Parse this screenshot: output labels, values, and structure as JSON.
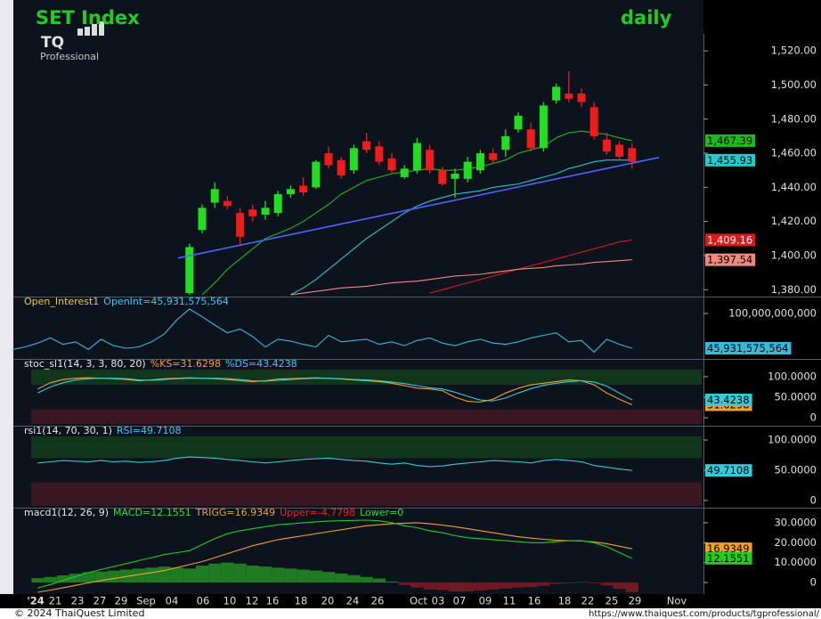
{
  "chart_data": [
    {
      "type": "candlestick",
      "title": "SET Index",
      "subtitle": "daily",
      "logo_text": "TQ",
      "logo_subtext": "Professional",
      "ylim": [
        1377,
        1530
      ],
      "yticks": [
        {
          "value": 1380,
          "label": "1,380.00"
        },
        {
          "value": 1400,
          "label": "1,400.00"
        },
        {
          "value": 1420,
          "label": "1,420.00"
        },
        {
          "value": 1440,
          "label": "1,440.00"
        },
        {
          "value": 1460,
          "label": "1,460.00"
        },
        {
          "value": 1480,
          "label": "1,480.00"
        },
        {
          "value": 1500,
          "label": "1,500.00"
        },
        {
          "value": 1520,
          "label": "1,520.00"
        }
      ],
      "up_color": "#22dd22",
      "down_color": "#ee1c1c",
      "open": [
        null,
        null,
        null,
        null,
        null,
        null,
        null,
        null,
        null,
        null,
        null,
        null,
        null,
        null,
        1378,
        1415,
        1431,
        1432,
        1425,
        1427,
        1424,
        1425,
        1436,
        1441,
        1440,
        1460,
        1456,
        1450,
        1467,
        1464,
        1457,
        1446,
        1450,
        1462,
        1450,
        1445,
        1445,
        1450,
        1460,
        1462,
        1474,
        1474,
        1463,
        1491,
        1495,
        1495,
        1487,
        1468,
        1465,
        1463
      ],
      "high": [
        null,
        null,
        null,
        null,
        null,
        null,
        null,
        null,
        null,
        null,
        null,
        null,
        null,
        null,
        1407,
        1430,
        1443,
        1435,
        1428,
        1430,
        1432,
        1438,
        1441,
        1446,
        1456,
        1464,
        1458,
        1465,
        1472,
        1467,
        1460,
        1453,
        1469,
        1465,
        1452,
        1451,
        1458,
        1462,
        1463,
        1474,
        1484,
        1478,
        1490,
        1501,
        1508,
        1498,
        1490,
        1472,
        1467,
        1466
      ],
      "low": [
        null,
        null,
        null,
        null,
        null,
        null,
        null,
        null,
        null,
        null,
        null,
        null,
        null,
        null,
        1377,
        1413,
        1428,
        1427,
        1406,
        1420,
        1421,
        1423,
        1434,
        1435,
        1439,
        1451,
        1445,
        1448,
        1460,
        1453,
        1448,
        1445,
        1448,
        1448,
        1441,
        1434,
        1443,
        1448,
        1454,
        1458,
        1472,
        1461,
        1461,
        1489,
        1490,
        1487,
        1468,
        1459,
        1456,
        1451
      ],
      "close": [
        null,
        null,
        null,
        null,
        null,
        null,
        null,
        null,
        null,
        null,
        null,
        null,
        null,
        null,
        1405,
        1428,
        1439,
        1429,
        1411,
        1423,
        1428,
        1436,
        1439,
        1437,
        1455,
        1453,
        1447,
        1463,
        1462,
        1455,
        1450,
        1451,
        1466,
        1450,
        1442,
        1448,
        1455,
        1460,
        1456,
        1470,
        1482,
        1463,
        1488,
        1499,
        1492,
        1490,
        1470,
        1461,
        1458,
        1455
      ],
      "series": [
        {
          "color": "#22b822",
          "last_label": "1,467.39",
          "values": [
            null,
            null,
            null,
            null,
            null,
            null,
            null,
            null,
            null,
            null,
            null,
            null,
            null,
            null,
            null,
            1377,
            1384,
            1392,
            1398,
            1404,
            1410,
            1413,
            1416,
            1420,
            1425,
            1430,
            1436,
            1440,
            1444,
            1446,
            1448,
            1449,
            1450,
            1451,
            1450,
            1450,
            1451,
            1452,
            1454,
            1456,
            1460,
            1462,
            1464,
            1469,
            1472,
            1473,
            1472,
            1471,
            1469,
            1467.39
          ]
        },
        {
          "color": "#22cccc",
          "last_label": "1,455.93",
          "values": [
            null,
            null,
            null,
            null,
            null,
            null,
            null,
            null,
            null,
            null,
            null,
            null,
            null,
            null,
            null,
            null,
            null,
            null,
            null,
            null,
            null,
            null,
            1377,
            1381,
            1386,
            1392,
            1398,
            1404,
            1410,
            1415,
            1420,
            1425,
            1429,
            1432,
            1434,
            1436,
            1437,
            1438,
            1440,
            1441,
            1442,
            1444,
            1446,
            1448,
            1451,
            1453,
            1455,
            1456,
            1456,
            1455.93
          ]
        },
        {
          "color": "#dd1a1a",
          "last_label": "1,409.16",
          "values": [
            null,
            null,
            null,
            null,
            null,
            null,
            null,
            null,
            null,
            null,
            null,
            null,
            null,
            null,
            null,
            null,
            null,
            null,
            null,
            null,
            null,
            null,
            null,
            null,
            null,
            null,
            null,
            null,
            null,
            null,
            null,
            null,
            null,
            1378,
            1380,
            1382,
            1384,
            1386,
            1388,
            1390,
            1392,
            1394,
            1396,
            1398,
            1400,
            1402,
            1404,
            1406,
            1408,
            1409.16
          ]
        },
        {
          "color": "#f08a80",
          "last_label": "1,397.54",
          "values": [
            null,
            null,
            null,
            null,
            null,
            null,
            null,
            null,
            null,
            null,
            null,
            null,
            null,
            null,
            null,
            null,
            null,
            null,
            null,
            null,
            null,
            null,
            1377,
            1378,
            1379,
            1380,
            1381,
            1381.5,
            1382,
            1383,
            1384,
            1384.5,
            1385,
            1386,
            1387,
            1388,
            1388.5,
            1389,
            1390,
            1391,
            1392,
            1392.5,
            1393,
            1394,
            1394.5,
            1395,
            1396,
            1396.5,
            1397,
            1397.54
          ]
        }
      ],
      "trend_line": {
        "color": "#4a66ff",
        "values": [
          1398.5,
          1457.5
        ]
      }
    },
    {
      "type": "line",
      "header": [
        {
          "text": "Open_Interest1",
          "color": "#e8c94a"
        },
        {
          "text": "OpenInt=45,931,575,564",
          "color": "#33ccff"
        }
      ],
      "ylim": [
        33500000000,
        109700000000
      ],
      "yticks": [
        {
          "value": 100000000000,
          "label": "100,000,000,000"
        }
      ],
      "series": [
        {
          "color": "#33bbdd",
          "last_label": "45,931,575,564",
          "values": [
            44000000000,
            48000000000,
            54000000000,
            62000000000,
            52000000000,
            56000000000,
            44000000000,
            60000000000,
            50000000000,
            46000000000,
            48000000000,
            56000000000,
            68000000000,
            90000000000,
            107000000000,
            95000000000,
            82000000000,
            70000000000,
            76000000000,
            64000000000,
            48000000000,
            60000000000,
            57000000000,
            52000000000,
            48000000000,
            66000000000,
            56000000000,
            58000000000,
            60000000000,
            52000000000,
            56000000000,
            50000000000,
            58000000000,
            62000000000,
            54000000000,
            50000000000,
            56000000000,
            60000000000,
            54000000000,
            52000000000,
            56000000000,
            62000000000,
            66000000000,
            70000000000,
            56000000000,
            58000000000,
            40000000000,
            60000000000,
            52000000000,
            45931575564
          ]
        }
      ]
    },
    {
      "type": "line",
      "header": [
        {
          "text": "stoc_sl1(14, 3, 3, 80, 20)",
          "color": "#e8e8e8"
        },
        {
          "text": "%KS=31.6298",
          "color": "#f0a030"
        },
        {
          "text": "%DS=43.4238",
          "color": "#33ccff"
        }
      ],
      "ylim": [
        -15,
        117
      ],
      "yticks": [
        0,
        {
          "value": 50,
          "label": "50.0000"
        },
        {
          "value": 100,
          "label": "100.0000"
        }
      ],
      "bands": [
        {
          "from": 80,
          "to": 117,
          "color": "#10361c"
        },
        {
          "from": -15,
          "to": 20,
          "color": "#3a1622"
        }
      ],
      "series": [
        {
          "color": "#f0a030",
          "last_label": "31.6298",
          "values": [
            null,
            null,
            70,
            85,
            93,
            96,
            97,
            96,
            95,
            93,
            90,
            92,
            95,
            96,
            97,
            96,
            95,
            93,
            90,
            88,
            90,
            94,
            95,
            96,
            97,
            96,
            94,
            92,
            90,
            88,
            84,
            78,
            72,
            70,
            66,
            50,
            40,
            38,
            45,
            60,
            72,
            80,
            84,
            88,
            92,
            90,
            80,
            60,
            45,
            31.6298
          ]
        },
        {
          "color": "#33ccdd",
          "last_label": "43.4238",
          "values": [
            null,
            null,
            60,
            75,
            85,
            92,
            95,
            96,
            96,
            95,
            92,
            91,
            93,
            95,
            96,
            96,
            96,
            95,
            93,
            90,
            89,
            91,
            93,
            95,
            96,
            96,
            95,
            93,
            92,
            90,
            87,
            83,
            78,
            73,
            70,
            62,
            52,
            43,
            41,
            48,
            60,
            71,
            79,
            84,
            88,
            90,
            87,
            77,
            60,
            43.4238
          ]
        }
      ]
    },
    {
      "type": "line",
      "header": [
        {
          "text": "rsi1(14, 70, 30, 1)",
          "color": "#e8e8e8"
        },
        {
          "text": "RSI=49.7108",
          "color": "#33ccff"
        }
      ],
      "ylim": [
        -9,
        106
      ],
      "yticks": [
        0,
        {
          "value": 50,
          "label": "50.0000"
        },
        {
          "value": 100,
          "label": "100.0000"
        }
      ],
      "bands": [
        {
          "from": 70,
          "to": 106,
          "color": "#10361c"
        },
        {
          "from": -9,
          "to": 30,
          "color": "#3a1622"
        }
      ],
      "series": [
        {
          "color": "#33ccdd",
          "last_label": "49.7108",
          "values": [
            null,
            null,
            62,
            64,
            66,
            65,
            64,
            66,
            64,
            65,
            63,
            64,
            66,
            70,
            72,
            71,
            70,
            68,
            66,
            64,
            62,
            64,
            66,
            68,
            69,
            70,
            68,
            66,
            65,
            62,
            60,
            62,
            58,
            56,
            57,
            60,
            62,
            64,
            66,
            65,
            64,
            62,
            66,
            68,
            66,
            64,
            58,
            55,
            52,
            49.7108
          ]
        }
      ]
    },
    {
      "type": "line",
      "header": [
        {
          "text": "macd1(12, 26, 9)",
          "color": "#e8e8e8"
        },
        {
          "text": "MACD=12.1551",
          "color": "#33dd33"
        },
        {
          "text": "TRIGG=16.9349",
          "color": "#f0a030"
        },
        {
          "text": "Upper=-4.7798",
          "color": "#ee2222"
        },
        {
          "text": "Lower=0",
          "color": "#33dd33"
        }
      ],
      "ylim": [
        -4.9,
        33.1
      ],
      "yticks": [
        0,
        {
          "value": 10,
          "label": "10.0000"
        },
        {
          "value": 20,
          "label": "20.0000"
        },
        {
          "value": 30,
          "label": "30.0000"
        }
      ],
      "histogram": {
        "up_color": "#1f7a22",
        "down_color": "#6e1a22",
        "values": [
          null,
          null,
          2.2,
          2.8,
          3.6,
          4.4,
          5.2,
          5.5,
          6,
          6.5,
          7,
          7.5,
          8,
          7.5,
          7,
          8.5,
          9.5,
          10,
          9.5,
          8.5,
          8,
          7.5,
          7,
          6.5,
          6,
          5.3,
          4.5,
          3.7,
          2.8,
          2,
          0.5,
          -1.3,
          -2.5,
          -3.5,
          -3.8,
          -4.5,
          -4.5,
          -4,
          -3.5,
          -3,
          -2.5,
          -2.3,
          -1.7,
          -0.7,
          0,
          0.2,
          -0.4,
          -1.5,
          -3.2,
          -4.7798
        ]
      },
      "series": [
        {
          "color": "#f0a030",
          "last_label": "16.9349",
          "values": [
            null,
            null,
            -4.9,
            -3.8,
            -2.6,
            -1.4,
            -0.2,
            1,
            2,
            3,
            4,
            5,
            6,
            7.5,
            9,
            10.5,
            12.5,
            14.5,
            16.5,
            18.5,
            20,
            21.5,
            22.5,
            23.5,
            24.5,
            25.5,
            26.5,
            27.5,
            28.5,
            29,
            29.5,
            29.8,
            30,
            29.5,
            28.8,
            28,
            27,
            26,
            25,
            24,
            23,
            22.3,
            21.7,
            21.2,
            21,
            20.8,
            20.4,
            19.5,
            18.2,
            16.9349
          ]
        },
        {
          "color": "#22cc22",
          "last_label": "12.1551",
          "values": [
            null,
            null,
            -2.7,
            -1,
            1,
            3,
            5,
            6.5,
            8,
            9.5,
            11,
            12.5,
            14,
            15,
            16,
            19,
            22,
            24.5,
            26,
            27,
            28,
            29,
            29.5,
            30,
            30.5,
            30.8,
            31,
            31.2,
            31.3,
            31,
            30,
            28.5,
            27.5,
            26,
            25,
            23.5,
            22.5,
            22,
            21.5,
            21,
            20.5,
            20,
            20,
            20.5,
            21,
            21,
            20,
            18,
            15,
            12.1551
          ]
        }
      ]
    }
  ],
  "x_axis": {
    "labels": [
      "'24",
      "21",
      "23",
      "27",
      "29",
      "Sep",
      "04",
      "06",
      "10",
      "12",
      "16",
      "18",
      "20",
      "24",
      "26",
      "Oct",
      "03",
      "07",
      "09",
      "11",
      "16",
      "18",
      "22",
      "25",
      "29",
      "Nov"
    ]
  },
  "footer": {
    "left": "© 2024 ThaiQuest Limited",
    "right": "https://www.thaiquest.com/products/tgprofessional/"
  }
}
